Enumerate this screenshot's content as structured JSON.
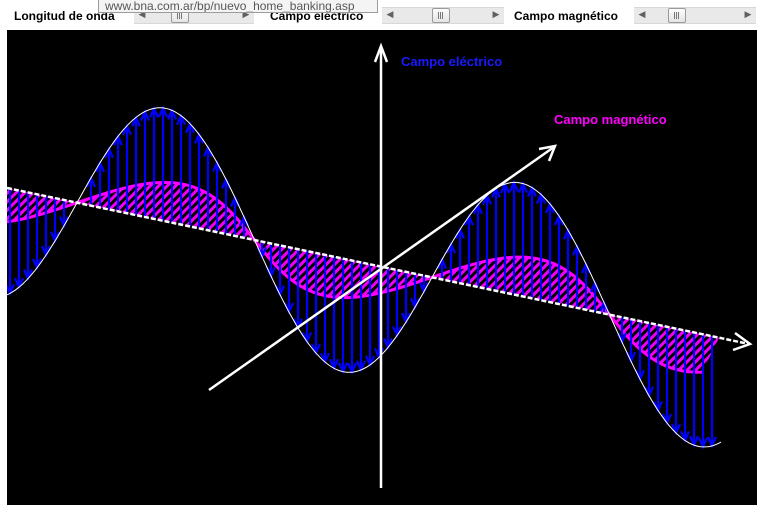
{
  "controls": {
    "wavelength_label": "Longitud de onda",
    "electric_label": "Campo eléctrico",
    "magnetic_label": "Campo magnético",
    "arrow_left": "◀",
    "arrow_right": "▶"
  },
  "tooltip": "www.bna.com.ar/bp/nuevo_home_banking.asp",
  "canvas": {
    "electric_field_label": "Campo eléctrico",
    "magnetic_field_label": "Campo magnético"
  },
  "colors": {
    "canvas_background": "#000000",
    "electric": "#0000ff",
    "magnetic": "#ff00ff",
    "axes": "#ffffff"
  },
  "icons": {
    "scroll_left": "chevron-left-icon",
    "scroll_right": "chevron-right-icon",
    "scroll_thumb": "scroll-thumb-grip-icon"
  }
}
